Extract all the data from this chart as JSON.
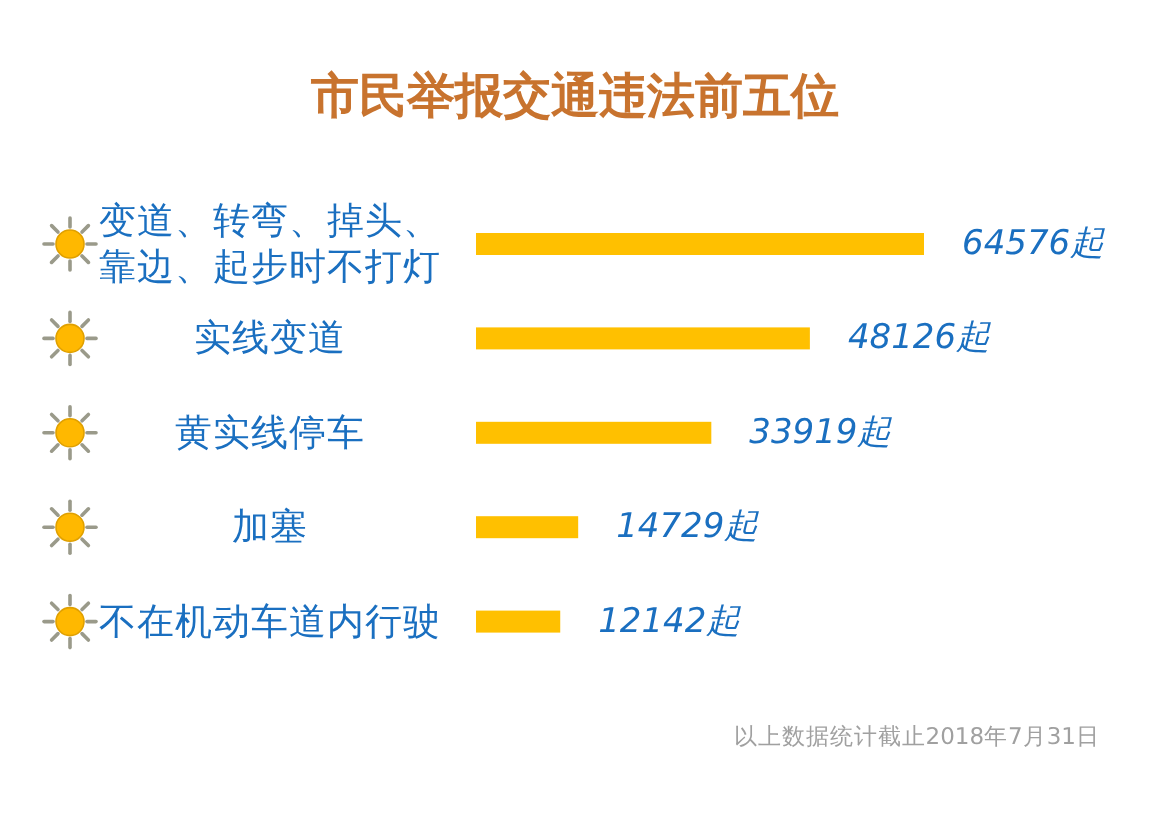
{
  "chart_data": {
    "type": "bar",
    "orientation": "horizontal",
    "title": "市民举报交通违法前五位",
    "categories": [
      "变道、转弯、掉头、靠边、起步时不打灯",
      "实线变道",
      "黄实线停车",
      "加塞",
      "不在机动车道内行驶"
    ],
    "values": [
      64576,
      48126,
      33919,
      14729,
      12142
    ],
    "value_labels": [
      "64576起",
      "48126起",
      "33919起",
      "14729起",
      "12142起"
    ],
    "color": "#ffc000",
    "annotations": [
      "以上数据统计截止2018年7月31日"
    ]
  }
}
